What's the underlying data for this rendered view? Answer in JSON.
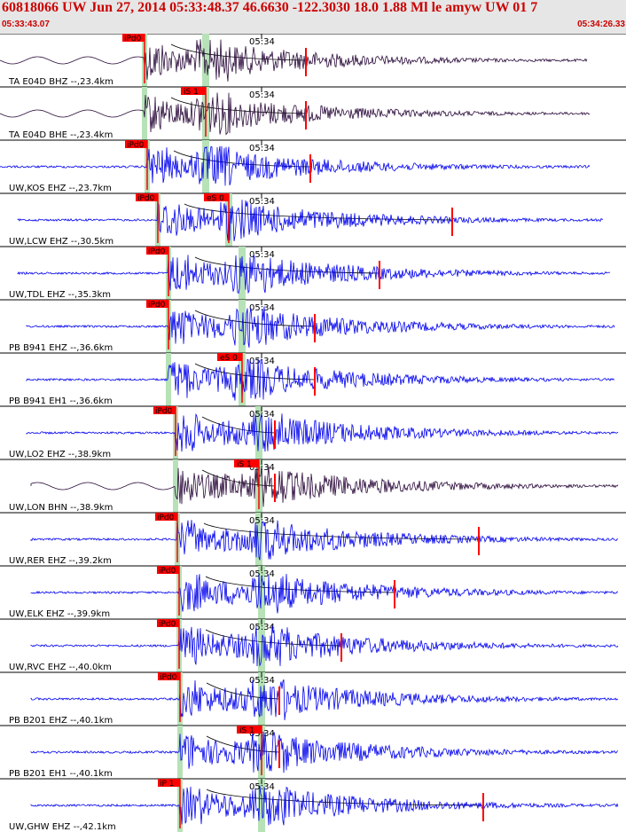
{
  "header": {
    "title": "60818066 UW Jun 27, 2014 05:33:48.37    46.6630 -122.3030 18.0 1.88 Ml le amyw UW 01    7",
    "start_time": "05:33:43.07",
    "end_time": "05:34:26.33"
  },
  "colors": {
    "header_bg": "#e6e6e6",
    "header_text": "#cc0000",
    "trace_blue": "#0000ee",
    "trace_dark": "#2a0a3a",
    "pick_red": "#ff0000",
    "window_green": "#b7e2b7"
  },
  "tick_label": "05:34",
  "traces": [
    {
      "label": "TA E04D BHZ --,23.4km",
      "pick": "iPd0",
      "pick2": null,
      "color": "dark",
      "start": 0.0,
      "end": 0.94
    },
    {
      "label": "TA E04D BHE --,23.4km",
      "pick": null,
      "pick2": "iS 1",
      "color": "dark",
      "start": 0.0,
      "end": 0.94
    },
    {
      "label": "UW,KOS EHZ --,23.7km",
      "pick": "iPd0",
      "pick2": null,
      "color": "blue",
      "start": 0.0,
      "end": 0.94
    },
    {
      "label": "UW,LCW EHZ --,30.5km",
      "pick": "iPd0",
      "pick2": "eS 0",
      "color": "blue",
      "start": 0.0,
      "end": 0.96
    },
    {
      "label": "UW,TDL EHZ --,35.3km",
      "pick": "iPd0",
      "pick2": null,
      "color": "blue",
      "start": 0.0,
      "end": 0.97
    },
    {
      "label": "PB B941 EHZ --,36.6km",
      "pick": "iPd0",
      "pick2": null,
      "color": "blue",
      "start": 0.04,
      "end": 0.98
    },
    {
      "label": "PB B941 EH1 --,36.6km",
      "pick": null,
      "pick2": "eS 0",
      "color": "blue",
      "start": 0.04,
      "end": 0.98
    },
    {
      "label": "UW,LO2 EHZ --,38.9km",
      "pick": "iPd0",
      "pick2": null,
      "color": "blue",
      "start": 0.05,
      "end": 0.98
    },
    {
      "label": "UW,LON BHN --,38.9km",
      "pick": null,
      "pick2": "iS 1",
      "color": "dark",
      "start": 0.05,
      "end": 0.98
    },
    {
      "label": "UW,RER EHZ --,39.2km",
      "pick": "iPd0",
      "pick2": null,
      "color": "blue",
      "start": 0.05,
      "end": 0.98
    },
    {
      "label": "UW,ELK EHZ --,39.9km",
      "pick": "iPd0",
      "pick2": null,
      "color": "blue",
      "start": 0.05,
      "end": 0.98
    },
    {
      "label": "UW,RVC EHZ --,40.0km",
      "pick": "iPd0",
      "pick2": null,
      "color": "blue",
      "start": 0.05,
      "end": 0.98
    },
    {
      "label": "PB B201 EHZ --,40.1km",
      "pick": "iPd0",
      "pick2": null,
      "color": "blue",
      "start": 0.05,
      "end": 0.98
    },
    {
      "label": "PB B201 EH1 --,40.1km",
      "pick": null,
      "pick2": "iS 1",
      "color": "blue",
      "start": 0.05,
      "end": 0.98
    },
    {
      "label": "UW,GHW EHZ --,42.1km",
      "pick": "iP 1",
      "pick2": null,
      "color": "blue",
      "start": 0.05,
      "end": 0.98
    }
  ]
}
